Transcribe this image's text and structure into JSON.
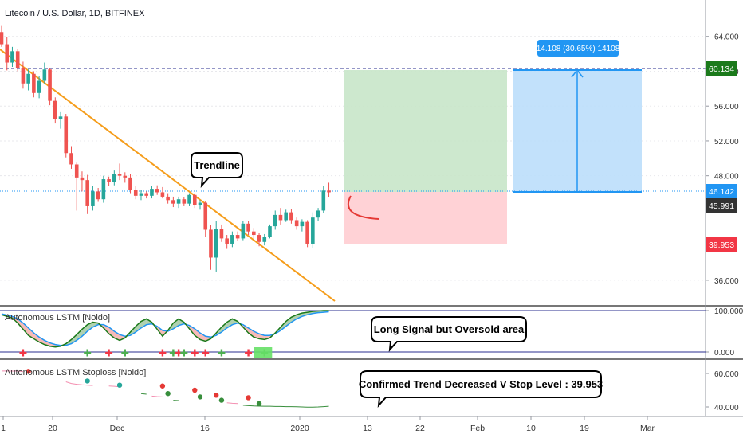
{
  "colors": {
    "up": "#26a69a",
    "down": "#ef5350",
    "trendline": "#f59d1b",
    "target_line": "#2a2e8f",
    "current_price": "#2196f3",
    "stop_price": "#f23645",
    "profit_zone": "#c8e6c9",
    "loss_zone": "#ffcdd2",
    "measure_zone": "#bbdefb",
    "measure_line": "#2196f3",
    "lstm_green": "#1b7a1b",
    "lstm_red": "#e53935",
    "lstm_blue": "#2196f3",
    "signal_plus_red": "#f23645",
    "signal_plus_green": "#4caf50",
    "stoploss_green": "#388e3c",
    "stoploss_red": "#e53935",
    "stoploss_teal": "#26a69a",
    "stoploss_pink": "#f48fb1"
  },
  "header": {
    "symbol_title": "Litecoin / U.S. Dollar, 1D, BITFINEX"
  },
  "chart_data": [
    {
      "type": "candlestick",
      "title": "Litecoin / U.S. Dollar, 1D, BITFINEX",
      "ylim": [
        33,
        66
      ],
      "y_ticks": [
        "64.000",
        "60.000",
        "56.000",
        "52.000",
        "48.000",
        "36.000"
      ],
      "price_labels": {
        "target": "60.134",
        "current": "46.142",
        "last": "45.991",
        "stop": "39.953"
      },
      "annotations": {
        "trendline": "Trendline",
        "measure": "14.108 (30.65%) 14108"
      },
      "candles": [
        {
          "o": 64.5,
          "h": 65.2,
          "l": 62.8,
          "c": 63.1
        },
        {
          "o": 63.1,
          "h": 63.9,
          "l": 60.1,
          "c": 61.0
        },
        {
          "o": 61.0,
          "h": 62.8,
          "l": 60.5,
          "c": 62.3
        },
        {
          "o": 62.3,
          "h": 62.6,
          "l": 60.0,
          "c": 60.4
        },
        {
          "o": 60.4,
          "h": 61.1,
          "l": 58.0,
          "c": 58.6
        },
        {
          "o": 58.6,
          "h": 60.2,
          "l": 57.8,
          "c": 59.7
        },
        {
          "o": 59.7,
          "h": 60.0,
          "l": 57.0,
          "c": 57.5
        },
        {
          "o": 57.5,
          "h": 59.4,
          "l": 56.9,
          "c": 58.9
        },
        {
          "o": 58.9,
          "h": 61.0,
          "l": 58.5,
          "c": 60.2
        },
        {
          "o": 60.2,
          "h": 60.4,
          "l": 56.1,
          "c": 56.6
        },
        {
          "o": 56.6,
          "h": 57.0,
          "l": 54.0,
          "c": 54.5
        },
        {
          "o": 54.5,
          "h": 55.3,
          "l": 53.4,
          "c": 54.8
        },
        {
          "o": 54.8,
          "h": 55.1,
          "l": 50.1,
          "c": 50.6
        },
        {
          "o": 50.6,
          "h": 51.4,
          "l": 48.8,
          "c": 49.3
        },
        {
          "o": 49.3,
          "h": 49.5,
          "l": 44.0,
          "c": 47.8
        },
        {
          "o": 47.8,
          "h": 48.5,
          "l": 46.2,
          "c": 47.5
        },
        {
          "o": 47.5,
          "h": 48.1,
          "l": 43.6,
          "c": 44.5
        },
        {
          "o": 44.5,
          "h": 46.8,
          "l": 44.0,
          "c": 46.2
        },
        {
          "o": 46.2,
          "h": 46.6,
          "l": 45.0,
          "c": 45.3
        },
        {
          "o": 45.3,
          "h": 48.0,
          "l": 44.9,
          "c": 47.6
        },
        {
          "o": 47.6,
          "h": 47.9,
          "l": 46.8,
          "c": 47.3
        },
        {
          "o": 47.3,
          "h": 48.6,
          "l": 46.9,
          "c": 48.2
        },
        {
          "o": 48.2,
          "h": 49.4,
          "l": 47.5,
          "c": 48.0
        },
        {
          "o": 48.0,
          "h": 48.4,
          "l": 47.2,
          "c": 47.8
        },
        {
          "o": 47.8,
          "h": 48.2,
          "l": 46.0,
          "c": 46.4
        },
        {
          "o": 46.4,
          "h": 46.8,
          "l": 45.3,
          "c": 45.7
        },
        {
          "o": 45.7,
          "h": 46.4,
          "l": 45.2,
          "c": 46.0
        },
        {
          "o": 46.0,
          "h": 46.2,
          "l": 45.4,
          "c": 45.7
        },
        {
          "o": 45.7,
          "h": 46.8,
          "l": 45.4,
          "c": 46.5
        },
        {
          "o": 46.5,
          "h": 46.9,
          "l": 45.8,
          "c": 46.1
        },
        {
          "o": 46.1,
          "h": 46.7,
          "l": 45.4,
          "c": 45.6
        },
        {
          "o": 45.6,
          "h": 46.0,
          "l": 44.8,
          "c": 45.2
        },
        {
          "o": 45.2,
          "h": 45.6,
          "l": 44.4,
          "c": 44.8
        },
        {
          "o": 44.8,
          "h": 45.6,
          "l": 44.3,
          "c": 45.3
        },
        {
          "o": 45.3,
          "h": 45.5,
          "l": 44.5,
          "c": 44.8
        },
        {
          "o": 44.8,
          "h": 46.0,
          "l": 44.5,
          "c": 45.8
        },
        {
          "o": 45.8,
          "h": 46.0,
          "l": 44.3,
          "c": 44.6
        },
        {
          "o": 44.6,
          "h": 45.2,
          "l": 44.1,
          "c": 44.9
        },
        {
          "o": 44.9,
          "h": 45.1,
          "l": 41.0,
          "c": 41.8
        },
        {
          "o": 41.8,
          "h": 42.3,
          "l": 37.2,
          "c": 38.6
        },
        {
          "o": 38.6,
          "h": 42.8,
          "l": 37.0,
          "c": 41.9
        },
        {
          "o": 41.9,
          "h": 42.4,
          "l": 40.4,
          "c": 40.8
        },
        {
          "o": 40.8,
          "h": 41.2,
          "l": 39.6,
          "c": 40.2
        },
        {
          "o": 40.2,
          "h": 41.6,
          "l": 39.8,
          "c": 41.2
        },
        {
          "o": 41.2,
          "h": 41.6,
          "l": 40.5,
          "c": 40.8
        },
        {
          "o": 40.8,
          "h": 42.8,
          "l": 40.6,
          "c": 42.5
        },
        {
          "o": 42.5,
          "h": 42.8,
          "l": 41.2,
          "c": 41.6
        },
        {
          "o": 41.6,
          "h": 42.0,
          "l": 40.8,
          "c": 41.2
        },
        {
          "o": 41.2,
          "h": 41.4,
          "l": 39.9,
          "c": 40.4
        },
        {
          "o": 40.4,
          "h": 41.3,
          "l": 40.0,
          "c": 41.0
        },
        {
          "o": 41.0,
          "h": 42.4,
          "l": 40.8,
          "c": 42.2
        },
        {
          "o": 42.2,
          "h": 44.0,
          "l": 41.8,
          "c": 43.5
        },
        {
          "o": 43.5,
          "h": 44.3,
          "l": 42.4,
          "c": 42.9
        },
        {
          "o": 42.9,
          "h": 44.1,
          "l": 42.7,
          "c": 43.8
        },
        {
          "o": 43.8,
          "h": 44.2,
          "l": 42.5,
          "c": 42.9
        },
        {
          "o": 42.9,
          "h": 43.2,
          "l": 41.8,
          "c": 42.2
        },
        {
          "o": 42.2,
          "h": 43.0,
          "l": 41.6,
          "c": 42.7
        },
        {
          "o": 42.7,
          "h": 42.9,
          "l": 39.8,
          "c": 40.2
        },
        {
          "o": 40.2,
          "h": 43.8,
          "l": 39.7,
          "c": 43.2
        },
        {
          "o": 43.2,
          "h": 44.3,
          "l": 42.8,
          "c": 44.0
        },
        {
          "o": 44.0,
          "h": 46.8,
          "l": 43.7,
          "c": 46.3
        },
        {
          "o": 46.3,
          "h": 47.2,
          "l": 45.5,
          "c": 46.1
        }
      ]
    },
    {
      "type": "line",
      "title": "Autonomous LSTM [Noldo]",
      "ylim": [
        -10,
        110
      ],
      "y_ticks": [
        "100.000",
        "0.000"
      ],
      "annotation": "Long Signal but Oversold area",
      "series": [
        {
          "values": [
            90,
            86,
            82,
            70,
            55,
            40,
            32,
            24,
            18,
            14,
            12,
            14,
            20,
            30,
            42,
            55,
            66,
            72,
            70,
            58,
            44,
            34,
            28,
            34,
            48,
            62,
            74,
            80,
            72,
            55,
            38,
            52,
            70,
            80,
            72,
            56,
            40,
            30,
            26,
            32,
            46,
            60,
            72,
            80,
            74,
            60,
            46,
            36,
            32,
            30,
            34,
            46,
            60,
            74,
            84,
            90,
            94,
            96,
            98,
            99,
            100,
            100
          ]
        },
        {
          "values": [
            92,
            89,
            86,
            80,
            70,
            58,
            46,
            36,
            28,
            22,
            18,
            16,
            16,
            20,
            28,
            38,
            50,
            60,
            66,
            66,
            60,
            50,
            42,
            38,
            40,
            48,
            58,
            66,
            68,
            62,
            52,
            50,
            56,
            64,
            68,
            64,
            56,
            46,
            38,
            36,
            40,
            48,
            58,
            66,
            70,
            66,
            58,
            50,
            44,
            40,
            40,
            44,
            52,
            62,
            72,
            80,
            86,
            90,
            93,
            95,
            96,
            97
          ]
        }
      ],
      "signals": [
        {
          "index": 4,
          "kind": "sell"
        },
        {
          "index": 16,
          "kind": "buy"
        },
        {
          "index": 20,
          "kind": "sell"
        },
        {
          "index": 23,
          "kind": "buy"
        },
        {
          "index": 30,
          "kind": "sell"
        },
        {
          "index": 32,
          "kind": "buy"
        },
        {
          "index": 33,
          "kind": "sell"
        },
        {
          "index": 34,
          "kind": "buy"
        },
        {
          "index": 36,
          "kind": "sell"
        },
        {
          "index": 38,
          "kind": "sell"
        },
        {
          "index": 41,
          "kind": "buy"
        },
        {
          "index": 46,
          "kind": "sell"
        },
        {
          "index": 49,
          "kind": "buy"
        }
      ]
    },
    {
      "type": "scatter",
      "title": "Autonomous LSTM Stoploss [Noldo]",
      "ylim": [
        36,
        64
      ],
      "y_ticks": [
        "60.000",
        "40.000"
      ],
      "annotation": "Confirmed Trend Decreased V Stop Level : 39.953",
      "series": [
        {
          "values": [
            61.5,
            61.5,
            61.4,
            61.4,
            61.2,
            null,
            null,
            null,
            null,
            null,
            null,
            null,
            55,
            54,
            53.5,
            53.2,
            53,
            52.8,
            null,
            null,
            52.5,
            52.3,
            52,
            null,
            null,
            null,
            null,
            null,
            46.5,
            46.2,
            46,
            null,
            null,
            null,
            null,
            null,
            null,
            null,
            null,
            null,
            null,
            null,
            42.5,
            42.2,
            42,
            null,
            null,
            null,
            null,
            null,
            null,
            null,
            null,
            null,
            null,
            null,
            null,
            null,
            null,
            null,
            null,
            null
          ]
        },
        {
          "values": [
            null,
            null,
            null,
            null,
            null,
            null,
            null,
            null,
            null,
            null,
            null,
            null,
            null,
            null,
            null,
            null,
            null,
            null,
            null,
            null,
            null,
            null,
            null,
            null,
            null,
            null,
            48,
            47.6,
            null,
            null,
            null,
            null,
            44,
            43.8,
            null,
            null,
            null,
            null,
            null,
            null,
            null,
            null,
            null,
            null,
            null,
            41,
            40.8,
            40.6,
            40.5,
            40.4,
            40.4,
            40.3,
            40.3,
            40.2,
            40.2,
            40.1,
            40,
            39.9,
            39.9,
            40,
            40.2,
            40.4
          ]
        }
      ],
      "points": [
        {
          "index": 5,
          "value": 61.3,
          "color": "red"
        },
        {
          "index": 16,
          "value": 55.5,
          "color": "teal"
        },
        {
          "index": 22,
          "value": 53,
          "color": "teal"
        },
        {
          "index": 30,
          "value": 52.5,
          "color": "red"
        },
        {
          "index": 31,
          "value": 48,
          "color": "green"
        },
        {
          "index": 36,
          "value": 50,
          "color": "red"
        },
        {
          "index": 37,
          "value": 46,
          "color": "green"
        },
        {
          "index": 40,
          "value": 47,
          "color": "red"
        },
        {
          "index": 41,
          "value": 44,
          "color": "green"
        },
        {
          "index": 46,
          "value": 45.5,
          "color": "red"
        },
        {
          "index": 48,
          "value": 42,
          "color": "green"
        }
      ]
    }
  ],
  "x_axis": {
    "labels": [
      "1",
      "20",
      "Dec",
      "16",
      "2020",
      "13",
      "22",
      "Feb",
      "10",
      "19",
      "Mar"
    ]
  },
  "drawing": {
    "measure_label": "14.108 (30.65%) 14108"
  }
}
